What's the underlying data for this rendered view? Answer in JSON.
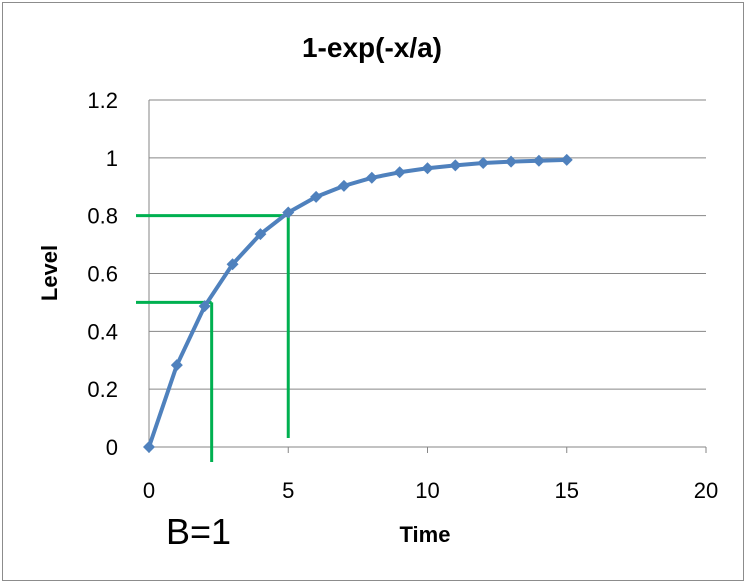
{
  "chart_data": {
    "type": "line",
    "title": "1-exp(-x/a)",
    "xlabel": "Time",
    "ylabel": "Level",
    "xlim": [
      0,
      20
    ],
    "ylim": [
      0,
      1.2
    ],
    "x_ticks": [
      0,
      5,
      10,
      15,
      20
    ],
    "y_ticks": [
      0,
      0.2,
      0.4,
      0.6,
      0.8,
      1,
      1.2
    ],
    "x_tick_labels": [
      "0",
      "5",
      "10",
      "15",
      "20"
    ],
    "y_tick_labels": [
      "0",
      "0.2",
      "0.4",
      "0.6",
      "0.8",
      "1",
      "1.2"
    ],
    "grid": "horizontal",
    "legend": "none",
    "series": [
      {
        "x": [
          0,
          1,
          2,
          3,
          4,
          5,
          6,
          7,
          8,
          9,
          10,
          11,
          12,
          13,
          14,
          15
        ],
        "values": [
          0,
          0.283,
          0.487,
          0.632,
          0.736,
          0.811,
          0.865,
          0.903,
          0.931,
          0.95,
          0.964,
          0.974,
          0.982,
          0.987,
          0.99,
          0.993
        ],
        "color": "#4f81bd",
        "marker": "diamond"
      }
    ],
    "reference_lines": [
      {
        "x": 2.25,
        "y": 0.5,
        "color": "#00b050"
      },
      {
        "x": 5,
        "y": 0.8,
        "color": "#00b050"
      }
    ],
    "annotations": [
      {
        "text": "B=1"
      }
    ],
    "colors": {
      "series": "#4f81bd",
      "reference": "#00b050",
      "grid": "#868686",
      "frame": "#8c8c8c"
    }
  }
}
